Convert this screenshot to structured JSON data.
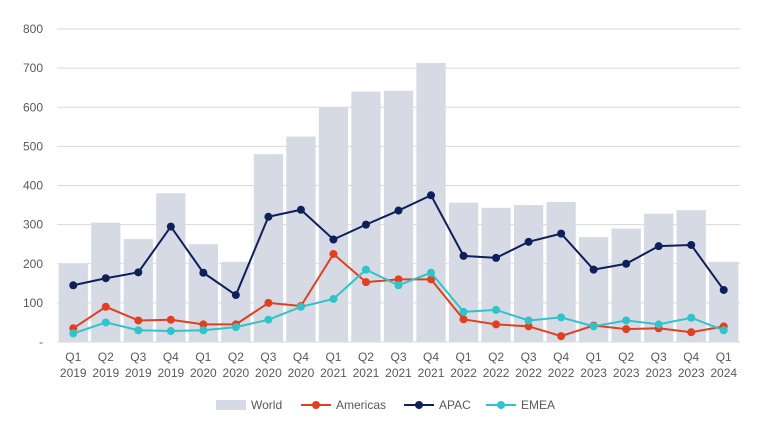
{
  "chart_data": {
    "type": "bar",
    "title": "",
    "xlabel": "",
    "ylabel": "",
    "ylim": [
      0,
      800
    ],
    "yticks": [
      0,
      100,
      200,
      300,
      400,
      500,
      600,
      700,
      800
    ],
    "ytick_labels": [
      "-",
      "100",
      "200",
      "300",
      "400",
      "500",
      "600",
      "700",
      "800"
    ],
    "grid": true,
    "legend_position": "bottom",
    "categories": [
      [
        "Q1",
        "2019"
      ],
      [
        "Q2",
        "2019"
      ],
      [
        "Q3",
        "2019"
      ],
      [
        "Q4",
        "2019"
      ],
      [
        "Q1",
        "2020"
      ],
      [
        "Q2",
        "2020"
      ],
      [
        "Q3",
        "2020"
      ],
      [
        "Q4",
        "2020"
      ],
      [
        "Q1",
        "2021"
      ],
      [
        "Q2",
        "2021"
      ],
      [
        "Q3",
        "2021"
      ],
      [
        "Q4",
        "2021"
      ],
      [
        "Q1",
        "2022"
      ],
      [
        "Q2",
        "2022"
      ],
      [
        "Q3",
        "2022"
      ],
      [
        "Q4",
        "2022"
      ],
      [
        "Q1",
        "2023"
      ],
      [
        "Q2",
        "2023"
      ],
      [
        "Q3",
        "2023"
      ],
      [
        "Q4",
        "2023"
      ],
      [
        "Q1",
        "2024"
      ]
    ],
    "series": [
      {
        "name": "World",
        "kind": "bar",
        "color": "#d5dae4",
        "values": [
          200,
          305,
          263,
          380,
          250,
          205,
          480,
          525,
          600,
          640,
          642,
          713,
          356,
          343,
          350,
          358,
          268,
          290,
          328,
          337,
          205
        ]
      },
      {
        "name": "Americas",
        "kind": "line",
        "color": "#e0401f",
        "values": [
          35,
          90,
          55,
          57,
          45,
          45,
          100,
          92,
          225,
          153,
          160,
          160,
          58,
          45,
          40,
          15,
          42,
          33,
          35,
          25,
          40
        ]
      },
      {
        "name": "APAC",
        "kind": "line",
        "color": "#0f1f5a",
        "values": [
          145,
          163,
          178,
          295,
          177,
          120,
          320,
          338,
          262,
          300,
          336,
          375,
          220,
          215,
          256,
          277,
          185,
          200,
          245,
          248,
          133
        ]
      },
      {
        "name": "EMEA",
        "kind": "line",
        "color": "#2ec4c9",
        "values": [
          22,
          50,
          30,
          28,
          30,
          38,
          57,
          90,
          110,
          185,
          145,
          177,
          77,
          82,
          55,
          63,
          40,
          55,
          45,
          62,
          30
        ]
      }
    ]
  },
  "colors": {
    "grid": "#d9d9d9",
    "text": "#595959"
  }
}
